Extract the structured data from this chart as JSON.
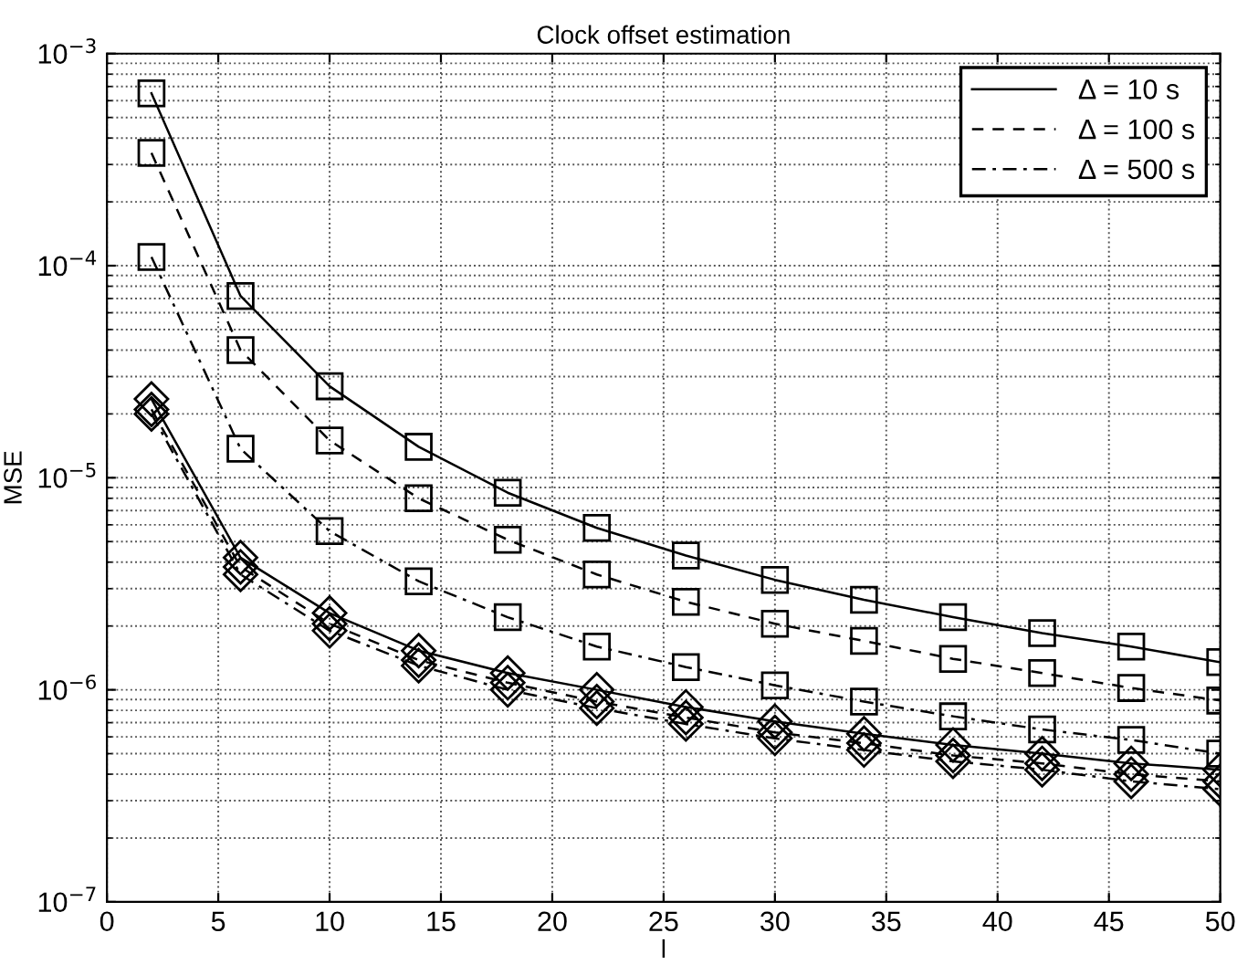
{
  "chart_data": {
    "type": "line",
    "title": "Clock offset estimation",
    "xlabel": "l",
    "ylabel": "MSE",
    "log": "y",
    "xlim": [
      0,
      50
    ],
    "xticks": [
      0,
      5,
      10,
      15,
      20,
      25,
      30,
      35,
      40,
      45,
      50
    ],
    "ylim": [
      1e-07,
      0.001
    ],
    "yticks": [
      {
        "value": 1e-07,
        "label": "10$^{−7}$"
      },
      {
        "value": 1e-06,
        "label": "10$^{−6}$"
      },
      {
        "value": 1e-05,
        "label": "10$^{−5}$"
      },
      {
        "value": 0.0001,
        "label": "10$^{−4}$"
      },
      {
        "value": 0.001,
        "label": "10$^{−3}$"
      }
    ],
    "grid": true,
    "legend": "top right",
    "x": [
      2,
      6,
      10,
      14,
      18,
      22,
      26,
      30,
      34,
      38,
      42,
      46,
      50
    ],
    "series": [
      {
        "name": "Δ = 10 s",
        "color": "#000000",
        "line_style": "solid",
        "marker": "square",
        "values": [
          0.00065,
          7.2e-05,
          2.7e-05,
          1.4e-05,
          8.5e-06,
          5.8e-06,
          4.3e-06,
          3.3e-06,
          2.66e-06,
          2.2e-06,
          1.85e-06,
          1.6e-06,
          1.35e-06
        ]
      },
      {
        "name": "Δ = 100 s",
        "color": "#000000",
        "line_style": "dashed",
        "marker": "square",
        "values": [
          0.00034,
          4e-05,
          1.5e-05,
          8e-06,
          5.1e-06,
          3.5e-06,
          2.6e-06,
          2.05e-06,
          1.7e-06,
          1.4e-06,
          1.2e-06,
          1.02e-06,
          8.9e-07
        ]
      },
      {
        "name": "Δ = 500 s",
        "color": "#000000",
        "line_style": "dashdot",
        "marker": "square",
        "values": [
          0.00011,
          1.37e-05,
          5.6e-06,
          3.25e-06,
          2.2e-06,
          1.6e-06,
          1.28e-06,
          1.05e-06,
          8.8e-07,
          7.5e-07,
          6.5e-07,
          5.8e-07,
          5e-07
        ]
      },
      {
        "color": "#000000",
        "line_style": "solid",
        "marker": "diamond",
        "values": [
          2.35e-05,
          4.2e-06,
          2.3e-06,
          1.53e-06,
          1.2e-06,
          1e-06,
          8.3e-07,
          7.1e-07,
          6.2e-07,
          5.5e-07,
          5e-07,
          4.5e-07,
          4.2e-07
        ]
      },
      {
        "color": "#000000",
        "line_style": "dashed",
        "marker": "diamond",
        "values": [
          2.1e-05,
          3.8e-06,
          2.05e-06,
          1.38e-06,
          1.08e-06,
          8.8e-07,
          7.4e-07,
          6.3e-07,
          5.6e-07,
          4.9e-07,
          4.5e-07,
          4e-07,
          3.7e-07
        ]
      },
      {
        "color": "#000000",
        "line_style": "dashdot",
        "marker": "diamond",
        "values": [
          2e-05,
          3.5e-06,
          1.9e-06,
          1.3e-06,
          1e-06,
          8.2e-07,
          6.9e-07,
          5.9e-07,
          5.2e-07,
          4.6e-07,
          4.2e-07,
          3.7e-07,
          3.4e-07
        ]
      }
    ]
  }
}
